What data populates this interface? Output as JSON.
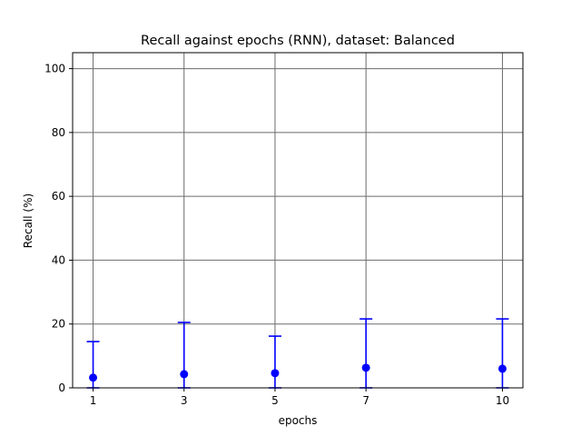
{
  "chart_data": {
    "type": "scatter",
    "title": "Recall against epochs (RNN), dataset: Balanced",
    "xlabel": "epochs",
    "ylabel": "Recall (%)",
    "x": [
      1,
      3,
      5,
      7,
      10
    ],
    "xticks": [
      1,
      3,
      5,
      7,
      10
    ],
    "yticks": [
      0,
      20,
      40,
      60,
      80,
      100
    ],
    "xlim": [
      0.55,
      10.45
    ],
    "ylim": [
      0,
      105
    ],
    "grid": true,
    "series": [
      {
        "values": [
          3.2,
          4.3,
          4.6,
          6.3,
          6.0
        ],
        "error_upper": [
          14.5,
          20.5,
          16.2,
          21.6,
          21.6
        ],
        "error_lower": [
          0,
          0,
          0,
          0,
          0
        ],
        "color": "#0000ff"
      }
    ]
  }
}
